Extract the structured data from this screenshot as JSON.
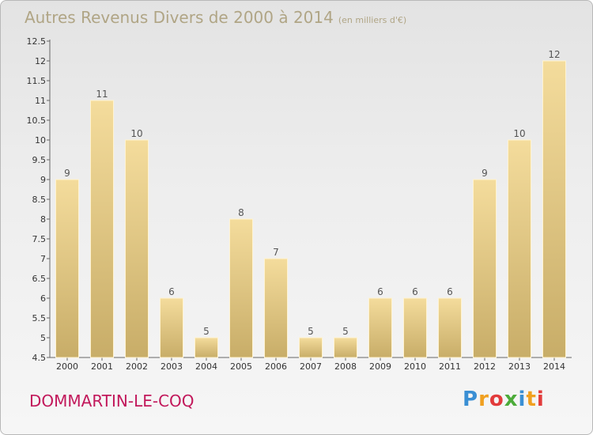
{
  "title": "Autres Revenus Divers de 2000 à 2014",
  "subtitle": "(en milliers d'€)",
  "commune": "DOMMARTIN-LE-COQ",
  "logo": {
    "text": "Proxiti",
    "letter_colors": [
      "#3a8fd4",
      "#f0a020",
      "#e23b3b",
      "#4cab3a",
      "#3a8fd4",
      "#f0a020",
      "#e23b3b"
    ]
  },
  "colors": {
    "bar_light": "#f4dc9c",
    "bar_dark": "#c8ad68",
    "title": "#b0a585",
    "commune": "#c2185b",
    "axis": "#666666"
  },
  "chart_data": {
    "type": "bar",
    "title": "Autres Revenus Divers de 2000 à 2014",
    "subtitle": "(en milliers d'€)",
    "categories": [
      "2000",
      "2001",
      "2002",
      "2003",
      "2004",
      "2005",
      "2006",
      "2007",
      "2008",
      "2009",
      "2010",
      "2011",
      "2012",
      "2013",
      "2014"
    ],
    "values": [
      9,
      11,
      10,
      6,
      5,
      8,
      7,
      5,
      5,
      6,
      6,
      6,
      9,
      10,
      12
    ],
    "ylim": [
      4.5,
      12.5
    ],
    "yticks": [
      "4.5",
      "5",
      "5.5",
      "6",
      "6.5",
      "7",
      "7.5",
      "8",
      "8.5",
      "9",
      "9.5",
      "10",
      "10.5",
      "11",
      "11.5",
      "12",
      "12.5"
    ],
    "grid": false,
    "xlabel": "",
    "ylabel": ""
  }
}
